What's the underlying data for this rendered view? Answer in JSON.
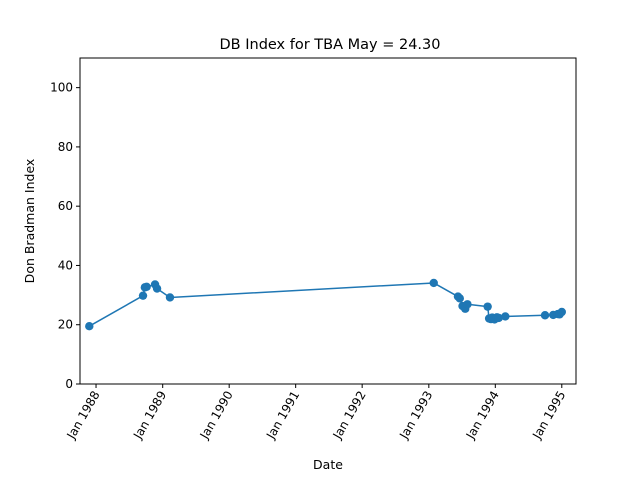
{
  "chart_data": {
    "type": "line",
    "title": "DB Index for TBA May = 24.30",
    "xlabel": "Date",
    "ylabel": "Don Bradman Index",
    "ylim": [
      0,
      110
    ],
    "xlim": [
      "1987-10-05",
      "1995-03-20"
    ],
    "grid": false,
    "legend": "none",
    "line_color": "#1f77b4",
    "y_ticks": [
      0,
      20,
      40,
      60,
      80,
      100
    ],
    "x_ticks": [
      {
        "date": "1988-01-01",
        "label": "Jan 1988"
      },
      {
        "date": "1989-01-01",
        "label": "Jan 1989"
      },
      {
        "date": "1990-01-01",
        "label": "Jan 1990"
      },
      {
        "date": "1991-01-01",
        "label": "Jan 1991"
      },
      {
        "date": "1992-01-01",
        "label": "Jan 1992"
      },
      {
        "date": "1993-01-01",
        "label": "Jan 1993"
      },
      {
        "date": "1994-01-01",
        "label": "Jan 1994"
      },
      {
        "date": "1995-01-01",
        "label": "Jan 1995"
      }
    ],
    "series": [
      {
        "points": [
          {
            "x": "1987-11-25",
            "y": 19.5
          },
          {
            "x": "1988-09-15",
            "y": 29.8
          },
          {
            "x": "1988-09-25",
            "y": 32.6
          },
          {
            "x": "1988-10-05",
            "y": 32.8
          },
          {
            "x": "1988-11-20",
            "y": 33.6
          },
          {
            "x": "1988-12-01",
            "y": 32.2
          },
          {
            "x": "1989-02-10",
            "y": 29.2
          },
          {
            "x": "1993-01-28",
            "y": 34.1
          },
          {
            "x": "1993-06-10",
            "y": 29.5
          },
          {
            "x": "1993-06-20",
            "y": 28.9
          },
          {
            "x": "1993-07-05",
            "y": 26.3
          },
          {
            "x": "1993-07-20",
            "y": 25.4
          },
          {
            "x": "1993-08-01",
            "y": 26.9
          },
          {
            "x": "1993-11-20",
            "y": 26.1
          },
          {
            "x": "1993-11-28",
            "y": 22.1
          },
          {
            "x": "1993-12-08",
            "y": 21.9
          },
          {
            "x": "1993-12-15",
            "y": 22.4
          },
          {
            "x": "1993-12-28",
            "y": 21.8
          },
          {
            "x": "1994-01-10",
            "y": 22.5
          },
          {
            "x": "1994-01-20",
            "y": 22.3
          },
          {
            "x": "1994-02-25",
            "y": 22.8
          },
          {
            "x": "1994-10-01",
            "y": 23.2
          },
          {
            "x": "1994-11-15",
            "y": 23.3
          },
          {
            "x": "1994-12-10",
            "y": 23.6
          },
          {
            "x": "1994-12-20",
            "y": 23.5
          },
          {
            "x": "1995-01-01",
            "y": 24.3
          }
        ]
      }
    ]
  }
}
